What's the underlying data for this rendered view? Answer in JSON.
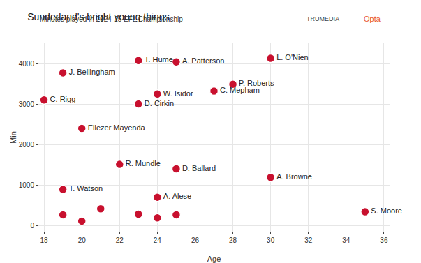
{
  "chart_data": {
    "type": "scatter",
    "title": "Sunderland's bright young things",
    "subtitle": "Minutes played in 2024-25 EFL Championship",
    "annotations": [
      "TRUMEDIA",
      "Opta"
    ],
    "x_label": "Age",
    "y_label": "Min",
    "x": [
      18,
      19,
      23,
      25,
      30,
      28,
      24,
      23,
      27,
      20,
      22,
      25,
      19,
      30,
      24,
      35,
      19,
      20,
      21,
      23,
      24,
      25
    ],
    "values": [
      3100,
      3770,
      4075,
      4040,
      4130,
      3490,
      3245,
      3000,
      3320,
      2400,
      1510,
      1400,
      890,
      1190,
      700,
      340,
      265,
      110,
      415,
      280,
      190,
      265
    ],
    "point_labels": [
      "C. Rigg",
      "J. Bellingham",
      "T. Hume",
      "A. Patterson",
      "L. O'Nien",
      "P. Roberts",
      "W. Isidor",
      "D. Cirkin",
      "C. Mepham",
      "Eliezer Mayenda",
      "R. Mundle",
      "D. Ballard",
      "T. Watson",
      "A. Browne",
      "A. Alese",
      "S. Moore",
      null,
      null,
      null,
      null,
      null,
      null
    ],
    "color": "#c8102e",
    "marker": "circle",
    "xlim": [
      17.7,
      36.3
    ],
    "xticks": [
      18,
      20,
      22,
      24,
      26,
      28,
      30,
      32,
      34,
      36
    ],
    "ylim": [
      -150,
      4500
    ],
    "yticks": [
      0,
      1000,
      2000,
      3000,
      4000
    ],
    "grid": true
  }
}
